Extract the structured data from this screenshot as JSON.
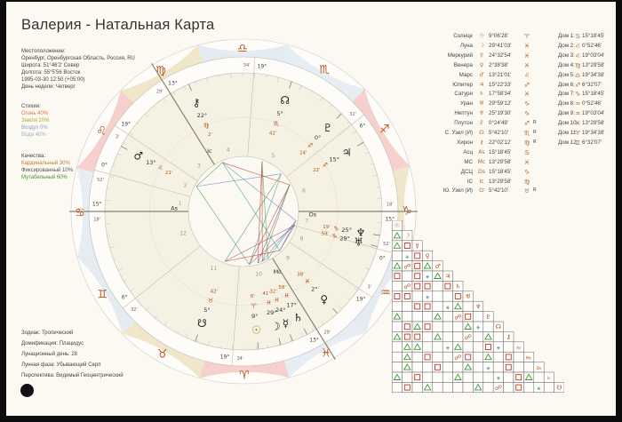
{
  "title": "Валерия - Натальная Карта",
  "location_label": "Местоположение:",
  "location": "Оренбург, Оренбургская Область, Россия, RU",
  "latitude": "Широта: 51°46'2' Север",
  "longitude": "Долгота: 55°5'56 Восток",
  "datetime": "1995-03-30 12:50 (+05:00)",
  "weekday": "День недели: Четверг",
  "elements": {
    "label": "Стихии:",
    "fire": "Огонь 40%",
    "earth": "Земля 20%",
    "air": "Воздух 0%",
    "water": "Вода 40%"
  },
  "qualities": {
    "label": "Качества:",
    "cardinal": "Кардинальный 30%",
    "fixed": "Фиксированный 10%",
    "mutable": "Мутабельный 60%"
  },
  "footer": {
    "zodiac": "Зодиак: Тропический",
    "houses": "Домификация: Плацидус",
    "lunar_day": "Лунационный день: 28",
    "lunar_phase": "Лунная фаза: Убывающий Серп",
    "perspective": "Перспектива: Видимый Геоцентрический"
  },
  "planets": [
    {
      "name": "Солнце",
      "glyph": "☉",
      "pos": "9°06'28'",
      "sign": "♈",
      "r": ""
    },
    {
      "name": "Луна",
      "glyph": "☽",
      "pos": "29°41'03'",
      "sign": "♓",
      "r": ""
    },
    {
      "name": "Меркурий",
      "glyph": "☿",
      "pos": "24°32'54'",
      "sign": "♓",
      "r": ""
    },
    {
      "name": "Венера",
      "glyph": "♀",
      "pos": "2°38'38'",
      "sign": "♓",
      "r": ""
    },
    {
      "name": "Марс",
      "glyph": "♂",
      "pos": "13°21'01'",
      "sign": "♌",
      "r": ""
    },
    {
      "name": "Юпитер",
      "glyph": "♃",
      "pos": "15°22'33'",
      "sign": "♐",
      "r": ""
    },
    {
      "name": "Сатурн",
      "glyph": "♄",
      "pos": "17°58'34'",
      "sign": "♓",
      "r": ""
    },
    {
      "name": "Уран",
      "glyph": "♅",
      "pos": "29°59'12'",
      "sign": "♑",
      "r": ""
    },
    {
      "name": "Нептун",
      "glyph": "♆",
      "pos": "25°19'30'",
      "sign": "♑",
      "r": ""
    },
    {
      "name": "Плутон",
      "glyph": "♇",
      "pos": "0°24'49'",
      "sign": "♐",
      "r": "R"
    },
    {
      "name": "С. Узел (И)",
      "glyph": "☊",
      "pos": "5°42'10'",
      "sign": "♏",
      "r": "R"
    },
    {
      "name": "Хирон",
      "glyph": "⚷",
      "pos": "22°02'12'",
      "sign": "♍",
      "r": "R"
    },
    {
      "name": "Асц",
      "glyph": "As",
      "pos": "15°18'45'",
      "sign": "♋",
      "r": ""
    },
    {
      "name": "МС",
      "glyph": "Mc",
      "pos": "13°29'58'",
      "sign": "♓",
      "r": ""
    },
    {
      "name": "ДСЦ",
      "glyph": "Ds",
      "pos": "15°18'45'",
      "sign": "♑",
      "r": ""
    },
    {
      "name": "IC",
      "glyph": "Ic",
      "pos": "13°29'58'",
      "sign": "♍",
      "r": ""
    },
    {
      "name": "Ю. Узел (И)",
      "glyph": "☋",
      "pos": "5°42'10'",
      "sign": "♉",
      "r": "R"
    }
  ],
  "houses": [
    {
      "n": "Дом 1:",
      "sign": "♋",
      "pos": "15°18'45'"
    },
    {
      "n": "Дом 2:",
      "sign": "♌",
      "pos": "0°52'46'"
    },
    {
      "n": "Дом 3:",
      "sign": "♌",
      "pos": "19°03'04'"
    },
    {
      "n": "Дом 4:",
      "sign": "♍",
      "pos": "13°29'58'"
    },
    {
      "n": "Дом 5:",
      "sign": "♎",
      "pos": "19°34'38'"
    },
    {
      "n": "Дом 6:",
      "sign": "♐",
      "pos": "6°32'07'"
    },
    {
      "n": "Дом 7:",
      "sign": "♑",
      "pos": "15°18'45'"
    },
    {
      "n": "Дом 8:",
      "sign": "♒",
      "pos": "0°52'46'"
    },
    {
      "n": "Дом 9:",
      "sign": "♒",
      "pos": "19°03'04'"
    },
    {
      "n": "Дом 10:",
      "sign": "♓",
      "pos": "13°29'58'"
    },
    {
      "n": "Дом 11:",
      "sign": "♈",
      "pos": "19°34'38'"
    },
    {
      "n": "Дом 12:",
      "sign": "♊",
      "pos": "6°32'07'"
    }
  ],
  "wheel": {
    "ascendant_deg": 105.31,
    "sign_glyphs": [
      "♈",
      "♉",
      "♊",
      "♋",
      "♌",
      "♍",
      "♎",
      "♏",
      "♐",
      "♑",
      "♒",
      "♓"
    ],
    "sign_colors": [
      "#f2b9b4",
      "#eadbb2",
      "#d7e2ec",
      "#dbe6f0",
      "#f2b9b4",
      "#eadbb2",
      "#d7e2ec",
      "#dbe6f0",
      "#f2b9b4",
      "#eadbb2",
      "#d7e2ec",
      "#dbe6f0"
    ],
    "house_cusps": [
      105.31,
      120.88,
      139.05,
      163.5,
      199.58,
      246.54,
      285.31,
      300.88,
      319.05,
      343.5,
      19.58,
      66.54
    ],
    "cusp_labels": [
      {
        "deg": 105.31,
        "d": "15°",
        "m": "18'"
      },
      {
        "deg": 120.88,
        "d": "0°",
        "m": "52'"
      },
      {
        "deg": 139.05,
        "d": "19°",
        "m": "3'"
      },
      {
        "deg": 163.5,
        "d": "13°",
        "m": "29'"
      },
      {
        "deg": 199.58,
        "d": "19°",
        "m": "34'"
      },
      {
        "deg": 246.54,
        "d": "6°",
        "m": "32'"
      },
      {
        "deg": 285.31,
        "d": "15°",
        "m": "18'"
      },
      {
        "deg": 300.88,
        "d": "0°",
        "m": "52'"
      },
      {
        "deg": 319.05,
        "d": "19°",
        "m": "3'"
      },
      {
        "deg": 343.5,
        "d": "13°",
        "m": "29'"
      },
      {
        "deg": 19.58,
        "d": "19°",
        "m": "34'"
      },
      {
        "deg": 66.54,
        "d": "6°",
        "m": "32'"
      }
    ],
    "planet_marks": [
      {
        "g": "☉",
        "deg": 9.11,
        "c": "#b8862b",
        "d": "9°",
        "s": "♈",
        "m": "6'"
      },
      {
        "g": "☽",
        "deg": 359.68,
        "c": "#222",
        "d": "29°",
        "s": "♓",
        "m": "41'"
      },
      {
        "g": "☿",
        "deg": 354.55,
        "c": "#222",
        "d": "24°",
        "s": "♓",
        "m": "32'"
      },
      {
        "g": "♀",
        "deg": 332.64,
        "c": "#222",
        "d": "2°",
        "s": "♓",
        "m": "38'"
      },
      {
        "g": "♂",
        "deg": 133.35,
        "c": "#222",
        "d": "13°",
        "s": "♌",
        "m": "21'"
      },
      {
        "g": "♃",
        "deg": 255.38,
        "c": "#222",
        "d": "15°",
        "s": "♐",
        "m": "22'"
      },
      {
        "g": "♄",
        "deg": 347.98,
        "c": "#222",
        "d": "17°",
        "s": "♓",
        "m": "58'"
      },
      {
        "g": "♅",
        "deg": 299.99,
        "c": "#222",
        "d": "29°",
        "s": "♑",
        "m": "59'"
      },
      {
        "g": "♆",
        "deg": 295.33,
        "c": "#222",
        "d": "25°",
        "s": "♑",
        "m": "19'"
      },
      {
        "g": "♇",
        "deg": 240.41,
        "c": "#222",
        "d": "0°",
        "s": "♐",
        "m": "24'"
      },
      {
        "g": "☊",
        "deg": 215.7,
        "c": "#222",
        "d": "5°",
        "s": "♏",
        "m": "42'"
      },
      {
        "g": "⚷",
        "deg": 172.04,
        "c": "#222",
        "d": "22°",
        "s": "♍",
        "m": "2'"
      },
      {
        "g": "☋",
        "deg": 35.7,
        "c": "#222",
        "d": "5°",
        "s": "♉",
        "m": "42'"
      }
    ],
    "angle_labels": [
      {
        "t": "As",
        "deg": 105.31
      },
      {
        "t": "Ds",
        "deg": 285.31
      },
      {
        "t": "Mc",
        "deg": 343.5
      },
      {
        "t": "Ic",
        "deg": 163.5
      }
    ]
  },
  "aspect_grid": {
    "row_labels": [
      "☉",
      "☽",
      "☿",
      "♀",
      "♂",
      "♃",
      "♄",
      "♅",
      "♆",
      "♇",
      "☊",
      "⚷",
      "As",
      "Mc",
      "Ds",
      "Ic",
      "☋"
    ],
    "cells": [
      {
        "r": 1,
        "c": 0,
        "t": "tri"
      },
      {
        "r": 2,
        "c": 0,
        "t": "tri"
      },
      {
        "r": 2,
        "c": 1,
        "t": "sq"
      },
      {
        "r": 3,
        "c": 2,
        "t": "sq"
      },
      {
        "r": 3,
        "c": 1,
        "t": "dash"
      },
      {
        "r": 4,
        "c": 0,
        "t": "tri"
      },
      {
        "r": 4,
        "c": 1,
        "t": "op"
      },
      {
        "r": 4,
        "c": 2,
        "t": "sq"
      },
      {
        "r": 4,
        "c": 3,
        "t": "tri"
      },
      {
        "r": 5,
        "c": 0,
        "t": "sq"
      },
      {
        "r": 5,
        "c": 2,
        "t": "sq"
      },
      {
        "r": 5,
        "c": 3,
        "t": "dash"
      },
      {
        "r": 5,
        "c": 4,
        "t": "tri"
      },
      {
        "r": 6,
        "c": 1,
        "t": "op"
      },
      {
        "r": 6,
        "c": 2,
        "t": "sq"
      },
      {
        "r": 6,
        "c": 3,
        "t": "sq"
      },
      {
        "r": 6,
        "c": 5,
        "t": "sq"
      },
      {
        "r": 7,
        "c": 0,
        "t": "sq"
      },
      {
        "r": 7,
        "c": 1,
        "t": "sq"
      },
      {
        "r": 7,
        "c": 3,
        "t": "dash"
      },
      {
        "r": 7,
        "c": 6,
        "t": "sq"
      },
      {
        "r": 8,
        "c": 2,
        "t": "sq"
      },
      {
        "r": 8,
        "c": 3,
        "t": "sq"
      },
      {
        "r": 8,
        "c": 5,
        "t": "dash"
      },
      {
        "r": 8,
        "c": 6,
        "t": "tri"
      },
      {
        "r": 9,
        "c": 0,
        "t": "tri"
      },
      {
        "r": 9,
        "c": 4,
        "t": "tri"
      },
      {
        "r": 9,
        "c": 6,
        "t": "op"
      },
      {
        "r": 9,
        "c": 7,
        "t": "sq"
      },
      {
        "r": 10,
        "c": 1,
        "t": "sq"
      },
      {
        "r": 10,
        "c": 2,
        "t": "tri"
      },
      {
        "r": 10,
        "c": 3,
        "t": "sq"
      },
      {
        "r": 10,
        "c": 7,
        "t": "tri"
      },
      {
        "r": 10,
        "c": 8,
        "t": "dash"
      },
      {
        "r": 11,
        "c": 0,
        "t": "tri"
      },
      {
        "r": 11,
        "c": 1,
        "t": "sq"
      },
      {
        "r": 11,
        "c": 2,
        "t": "sq"
      },
      {
        "r": 11,
        "c": 4,
        "t": "tri"
      },
      {
        "r": 11,
        "c": 7,
        "t": "op"
      },
      {
        "r": 11,
        "c": 9,
        "t": "tri"
      },
      {
        "r": 12,
        "c": 1,
        "t": "tri"
      },
      {
        "r": 12,
        "c": 2,
        "t": "tri"
      },
      {
        "r": 12,
        "c": 5,
        "t": "dash"
      },
      {
        "r": 12,
        "c": 6,
        "t": "tri"
      },
      {
        "r": 12,
        "c": 9,
        "t": "sq"
      },
      {
        "r": 12,
        "c": 10,
        "t": "dash"
      },
      {
        "r": 13,
        "c": 1,
        "t": "tri"
      },
      {
        "r": 13,
        "c": 3,
        "t": "sq"
      },
      {
        "r": 13,
        "c": 6,
        "t": "op"
      },
      {
        "r": 13,
        "c": 7,
        "t": "sq"
      },
      {
        "r": 13,
        "c": 9,
        "t": "tri"
      },
      {
        "r": 13,
        "c": 11,
        "t": "sq"
      },
      {
        "r": 14,
        "c": 1,
        "t": "tri"
      },
      {
        "r": 14,
        "c": 4,
        "t": "sq"
      },
      {
        "r": 14,
        "c": 7,
        "t": "tri"
      },
      {
        "r": 14,
        "c": 9,
        "t": "dash"
      },
      {
        "r": 14,
        "c": 11,
        "t": "sq"
      },
      {
        "r": 15,
        "c": 0,
        "t": "tri"
      },
      {
        "r": 15,
        "c": 2,
        "t": "sq"
      },
      {
        "r": 15,
        "c": 6,
        "t": "tri"
      },
      {
        "r": 15,
        "c": 10,
        "t": "dash"
      },
      {
        "r": 15,
        "c": 12,
        "t": "sq"
      },
      {
        "r": 15,
        "c": 13,
        "t": "tri"
      },
      {
        "r": 16,
        "c": 1,
        "t": "sq"
      },
      {
        "r": 16,
        "c": 3,
        "t": "tri"
      },
      {
        "r": 16,
        "c": 8,
        "t": "tri"
      },
      {
        "r": 16,
        "c": 10,
        "t": "op"
      },
      {
        "r": 16,
        "c": 12,
        "t": "sq"
      },
      {
        "r": 16,
        "c": 14,
        "t": "dash"
      }
    ]
  }
}
